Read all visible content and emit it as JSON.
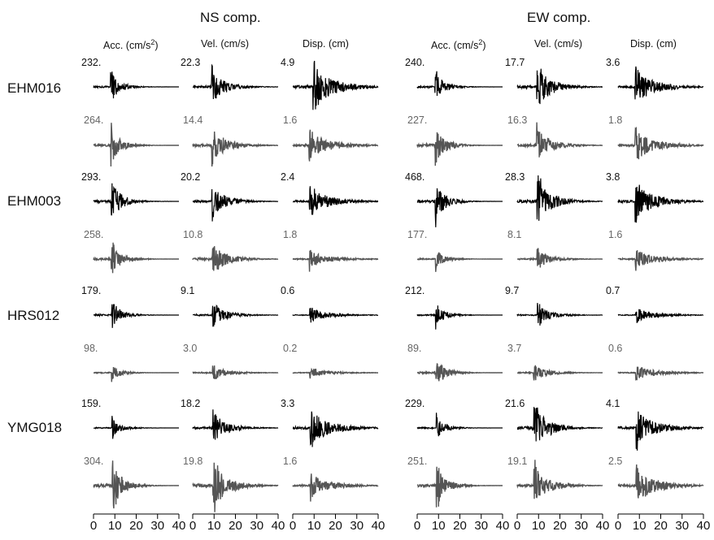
{
  "figure": {
    "components": [
      {
        "title": "NS comp."
      },
      {
        "title": "EW comp."
      }
    ],
    "column_headers": [
      "Acc. (cm/s",
      "Vel. (cm/s)",
      "Disp. (cm)"
    ],
    "acc_header_sup": "2",
    "acc_header_tail": ")",
    "stations": [
      "EHM016",
      "EHM003",
      "HRS012",
      "YMG018"
    ],
    "x_tick_labels": [
      "0",
      "10",
      "20",
      "30",
      "40"
    ],
    "colors": {
      "observed": "#000000",
      "synthetic": "#555555"
    }
  },
  "chart_data": {
    "type": "line",
    "x_range": [
      0,
      40
    ],
    "x_ticks": [
      0,
      10,
      20,
      30,
      40
    ],
    "legend": "none",
    "grid": false,
    "rows": [
      {
        "station": "EHM016",
        "kind": "observed",
        "peaks": {
          "ns_acc": "232.",
          "ns_vel": "22.3",
          "ns_disp": "4.9",
          "ew_acc": "240.",
          "ew_vel": "17.7",
          "ew_disp": "3.6"
        }
      },
      {
        "station": "EHM016",
        "kind": "synthetic",
        "peaks": {
          "ns_acc": "264.",
          "ns_vel": "14.4",
          "ns_disp": "1.6",
          "ew_acc": "227.",
          "ew_vel": "16.3",
          "ew_disp": "1.8"
        }
      },
      {
        "station": "EHM003",
        "kind": "observed",
        "peaks": {
          "ns_acc": "293.",
          "ns_vel": "20.2",
          "ns_disp": "2.4",
          "ew_acc": "468.",
          "ew_vel": "28.3",
          "ew_disp": "3.8"
        }
      },
      {
        "station": "EHM003",
        "kind": "synthetic",
        "peaks": {
          "ns_acc": "258.",
          "ns_vel": "10.8",
          "ns_disp": "1.8",
          "ew_acc": "177.",
          "ew_vel": "8.1",
          "ew_disp": "1.6"
        }
      },
      {
        "station": "HRS012",
        "kind": "observed",
        "peaks": {
          "ns_acc": "179.",
          "ns_vel": "9.1",
          "ns_disp": "0.6",
          "ew_acc": "212.",
          "ew_vel": "9.7",
          "ew_disp": "0.7"
        }
      },
      {
        "station": "HRS012",
        "kind": "synthetic",
        "peaks": {
          "ns_acc": "98.",
          "ns_vel": "3.0",
          "ns_disp": "0.2",
          "ew_acc": "89.",
          "ew_vel": "3.7",
          "ew_disp": "0.6"
        }
      },
      {
        "station": "YMG018",
        "kind": "observed",
        "peaks": {
          "ns_acc": "159.",
          "ns_vel": "18.2",
          "ns_disp": "3.3",
          "ew_acc": "229.",
          "ew_vel": "21.6",
          "ew_disp": "4.1"
        }
      },
      {
        "station": "YMG018",
        "kind": "synthetic",
        "peaks": {
          "ns_acc": "304.",
          "ns_vel": "19.8",
          "ns_disp": "1.6",
          "ew_acc": "251.",
          "ew_vel": "19.1",
          "ew_disp": "2.5"
        }
      }
    ]
  }
}
